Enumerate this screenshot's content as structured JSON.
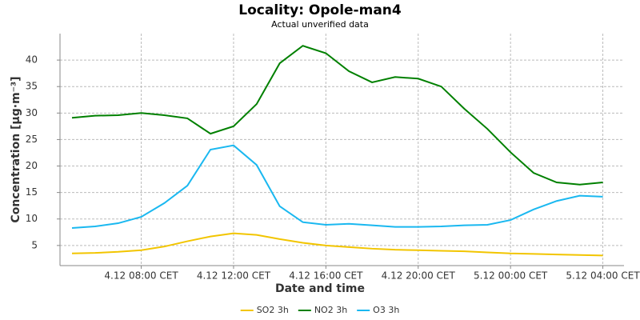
{
  "chart_data": {
    "type": "line",
    "title": "Locality: Opole-man4",
    "subtitle": "Actual unverified data",
    "x_label": "Date and time",
    "y_label": "Concentration [µg·m⁻³]",
    "categories": [
      null,
      null,
      null,
      "4.12 08:00 CET",
      null,
      null,
      null,
      "4.12 12:00 CET",
      null,
      null,
      null,
      "4.12 16:00 CET",
      null,
      null,
      null,
      "4.12 20:00 CET",
      null,
      null,
      null,
      "5.12 00:00 CET",
      null,
      null,
      null,
      "5.12 04:00 CET"
    ],
    "series": [
      {
        "name": "SO2 3h",
        "color": "#f2c500",
        "values": [
          3.5,
          3.6,
          3.8,
          4.1,
          4.8,
          5.8,
          6.7,
          7.3,
          7.0,
          6.2,
          5.5,
          5.0,
          4.7,
          4.4,
          4.2,
          4.1,
          4.0,
          3.9,
          3.7,
          3.5,
          3.4,
          3.3,
          3.2,
          3.1
        ]
      },
      {
        "name": "NO2 3h",
        "color": "#008000",
        "values": [
          29.1,
          29.5,
          29.6,
          30.0,
          29.6,
          29.0,
          26.1,
          27.5,
          31.7,
          39.4,
          42.7,
          41.3,
          37.9,
          35.8,
          36.8,
          36.5,
          35.0,
          30.8,
          27.0,
          22.6,
          18.7,
          16.9,
          16.5,
          16.9
        ]
      },
      {
        "name": "O3 3h",
        "color": "#1ab8f0",
        "values": [
          8.3,
          8.6,
          9.2,
          10.4,
          13.0,
          16.3,
          23.1,
          23.9,
          20.2,
          12.4,
          9.4,
          8.9,
          9.1,
          8.8,
          8.5,
          8.5,
          8.6,
          8.8,
          8.9,
          9.8,
          11.8,
          13.4,
          14.4,
          14.2
        ]
      }
    ],
    "ylim": [
      1.2,
      45
    ],
    "yticks": [
      5,
      10,
      15,
      20,
      25,
      30,
      35,
      40
    ],
    "grid": true,
    "legend": "bottom"
  }
}
